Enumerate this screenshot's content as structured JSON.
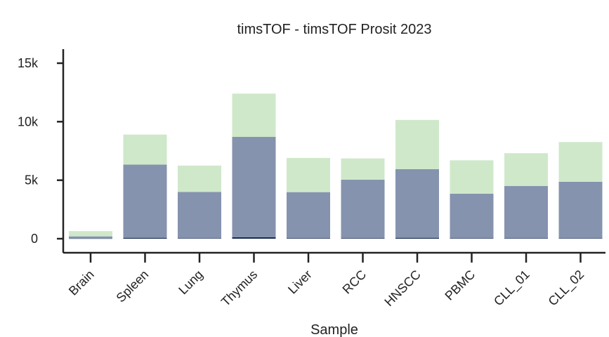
{
  "chart_data": {
    "type": "bar",
    "stacked": true,
    "title": "timsTOF - timsTOF Prosit 2023",
    "xlabel": "Sample",
    "ylabel": "",
    "ylim": [
      -1200,
      16200
    ],
    "yticks": [
      0,
      5000,
      10000,
      15000
    ],
    "ytick_labels": [
      "0",
      "5k",
      "10k",
      "15k"
    ],
    "grid": false,
    "categories": [
      "Brain",
      "Spleen",
      "Lung",
      "Thymus",
      "Liver",
      "RCC",
      "HNSCC",
      "PBMC",
      "CLL_01",
      "CLL_02"
    ],
    "series": [
      {
        "color": "#1b2a4e",
        "values": [
          20,
          80,
          40,
          120,
          50,
          50,
          80,
          30,
          30,
          40
        ]
      },
      {
        "color": "#8593ae",
        "values": [
          180,
          6250,
          3960,
          8580,
          3930,
          4990,
          5870,
          3810,
          4480,
          4820
        ]
      },
      {
        "color": "#cfe8ca",
        "values": [
          450,
          2570,
          2250,
          3700,
          2920,
          1820,
          4200,
          2860,
          2800,
          3400
        ]
      }
    ]
  }
}
